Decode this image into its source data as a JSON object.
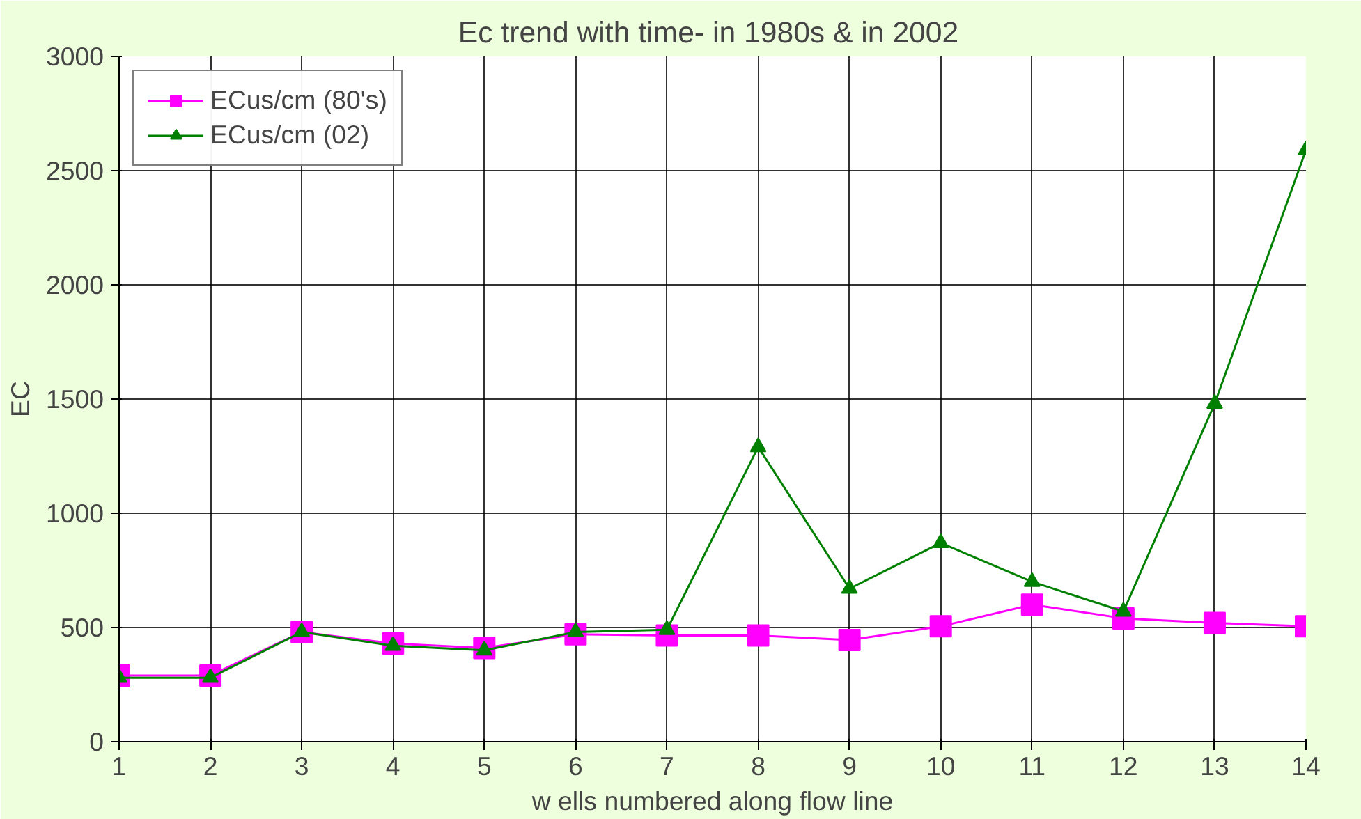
{
  "chart_data": {
    "type": "line",
    "title": "Ec trend with time-  in 1980s & in 2002",
    "xlabel": "w ells numbered along flow line",
    "ylabel": "EC",
    "x": [
      1,
      2,
      3,
      4,
      5,
      6,
      7,
      8,
      9,
      10,
      11,
      12,
      13,
      14
    ],
    "xlim": [
      1,
      14
    ],
    "xticks": [
      1,
      2,
      3,
      4,
      5,
      6,
      7,
      8,
      9,
      10,
      11,
      12,
      13,
      14
    ],
    "ylim": [
      0,
      3000
    ],
    "yticks": [
      0,
      500,
      1000,
      1500,
      2000,
      2500,
      3000
    ],
    "grid": true,
    "legend": "top left",
    "series": [
      {
        "name": "ECus/cm (80's)",
        "color": "#ff00ff",
        "marker": "square",
        "values": [
          290,
          290,
          480,
          430,
          410,
          470,
          465,
          465,
          445,
          505,
          600,
          540,
          520,
          505
        ]
      },
      {
        "name": "ECus/cm (02)",
        "color": "#008000",
        "marker": "triangle",
        "values": [
          280,
          280,
          480,
          420,
          400,
          480,
          490,
          1290,
          670,
          870,
          700,
          570,
          1480,
          2590
        ]
      }
    ]
  }
}
